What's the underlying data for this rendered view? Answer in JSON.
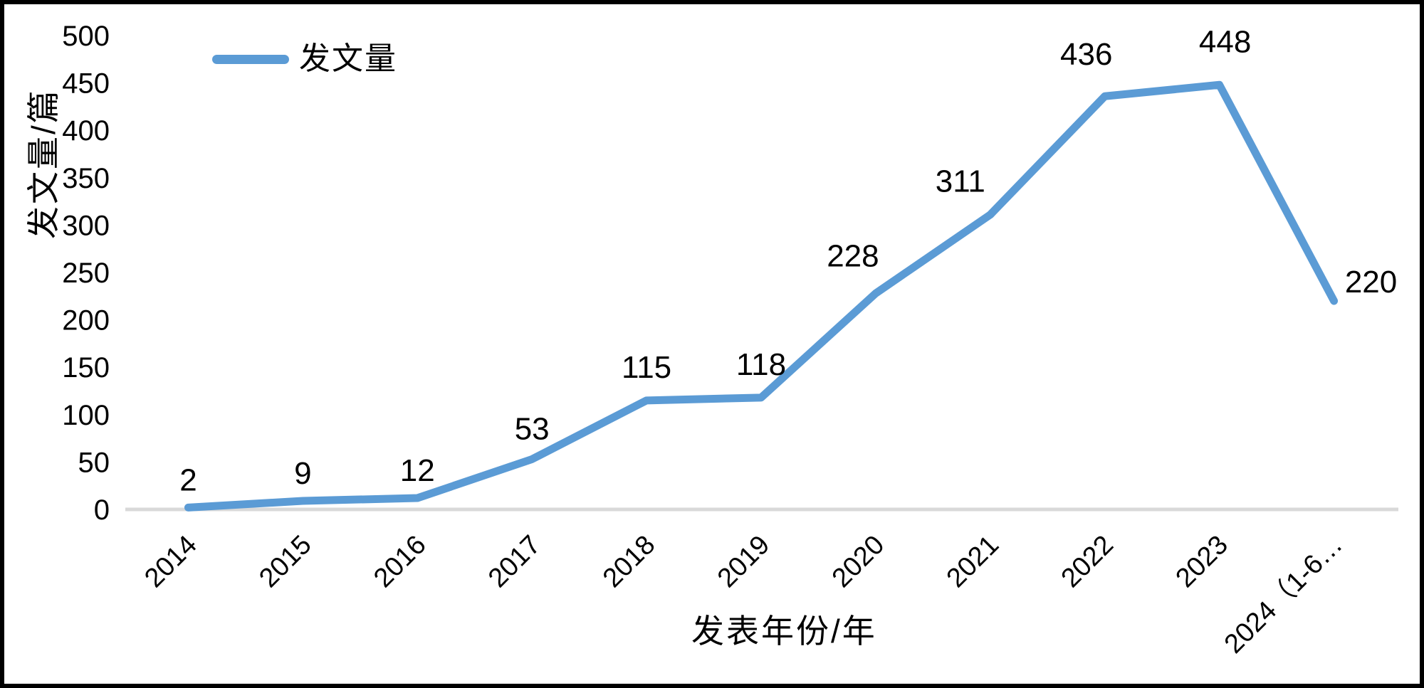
{
  "chart_data": {
    "type": "line",
    "series_name": "发文量",
    "categories": [
      "2014",
      "2015",
      "2016",
      "2017",
      "2018",
      "2019",
      "2020",
      "2021",
      "2022",
      "2023",
      "2024（1-6…"
    ],
    "values": [
      2,
      9,
      12,
      53,
      115,
      118,
      228,
      311,
      436,
      448,
      220
    ],
    "data_labels": [
      "2",
      "9",
      "12",
      "53",
      "115",
      "118",
      "228",
      "311",
      "436",
      "448",
      "220"
    ],
    "xlabel": "发表年份/年",
    "ylabel": "发文量/篇",
    "ylim": [
      0,
      500
    ],
    "yticks": [
      0,
      50,
      100,
      150,
      200,
      250,
      300,
      350,
      400,
      450,
      500
    ],
    "grid": false,
    "legend_position": "top-left-inside",
    "line_color": "#5B9BD5",
    "axis_line_color": "#D9D9D9",
    "text_color": "#000000",
    "background_color": "#FFFFFF",
    "frame_color": "#000000"
  }
}
